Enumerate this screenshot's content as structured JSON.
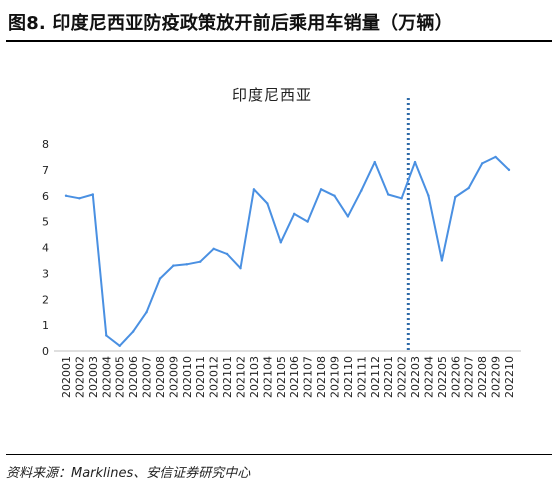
{
  "header": {
    "title": "图8. 印度尼西亚防疫政策放开前后乘用车销量（万辆）"
  },
  "footer": {
    "source": "资料来源：Marklines、安信证券研究中心"
  },
  "colors": {
    "line": "#4a90e2",
    "marker_line": "#2e6aa8",
    "rule": "#000000"
  },
  "chart_data": {
    "type": "line",
    "title": "印度尼西亚",
    "xlabel": "",
    "ylabel": "",
    "ylim": [
      0,
      8
    ],
    "yticks": [
      0,
      1,
      2,
      3,
      4,
      5,
      6,
      7,
      8
    ],
    "grid": false,
    "legend": "none",
    "categories": [
      "202001",
      "202002",
      "202003",
      "202004",
      "202005",
      "202006",
      "202007",
      "202008",
      "202009",
      "202010",
      "202011",
      "202012",
      "202101",
      "202102",
      "202103",
      "202104",
      "202105",
      "202106",
      "202107",
      "202108",
      "202109",
      "202110",
      "202111",
      "202112",
      "202201",
      "202202",
      "202203",
      "202204",
      "202205",
      "202206",
      "202207",
      "202208",
      "202209",
      "202210"
    ],
    "series": [
      {
        "values": [
          6.0,
          5.9,
          6.05,
          0.6,
          0.2,
          0.75,
          1.5,
          2.8,
          3.3,
          3.35,
          3.45,
          3.95,
          3.75,
          3.2,
          6.25,
          5.7,
          4.2,
          5.3,
          5.0,
          6.25,
          6.0,
          5.2,
          6.2,
          7.3,
          6.05,
          5.9,
          7.3,
          6.0,
          3.5,
          5.95,
          6.3,
          7.25,
          7.5,
          7.0
        ]
      }
    ],
    "annotations": [
      {
        "type": "vertical-dotted-line",
        "x": "202202.5"
      }
    ]
  }
}
